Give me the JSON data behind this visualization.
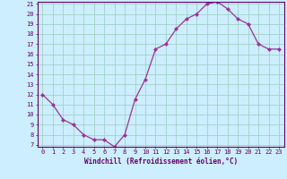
{
  "x": [
    0,
    1,
    2,
    3,
    4,
    5,
    6,
    7,
    8,
    9,
    10,
    11,
    12,
    13,
    14,
    15,
    16,
    17,
    18,
    19,
    20,
    21,
    22,
    23
  ],
  "y": [
    12,
    11,
    9.5,
    9,
    8,
    7.5,
    7.5,
    6.8,
    8,
    11.5,
    13.5,
    16.5,
    17.0,
    18.5,
    19.5,
    20.0,
    21.0,
    21.2,
    20.5,
    19.5,
    19.0,
    17.0,
    16.5,
    16.5
  ],
  "xlabel": "Windchill (Refroidissement éolien,°C)",
  "ylim": [
    7,
    21
  ],
  "xlim": [
    -0.5,
    23.5
  ],
  "yticks": [
    7,
    8,
    9,
    10,
    11,
    12,
    13,
    14,
    15,
    16,
    17,
    18,
    19,
    20,
    21
  ],
  "xticks": [
    0,
    1,
    2,
    3,
    4,
    5,
    6,
    7,
    8,
    9,
    10,
    11,
    12,
    13,
    14,
    15,
    16,
    17,
    18,
    19,
    20,
    21,
    22,
    23
  ],
  "line_color": "#993399",
  "bg_color": "#cceeff",
  "grid_color": "#99ccbb",
  "axis_color": "#660066",
  "text_color": "#660066",
  "tick_fontsize": 5.0,
  "label_fontsize": 5.5
}
